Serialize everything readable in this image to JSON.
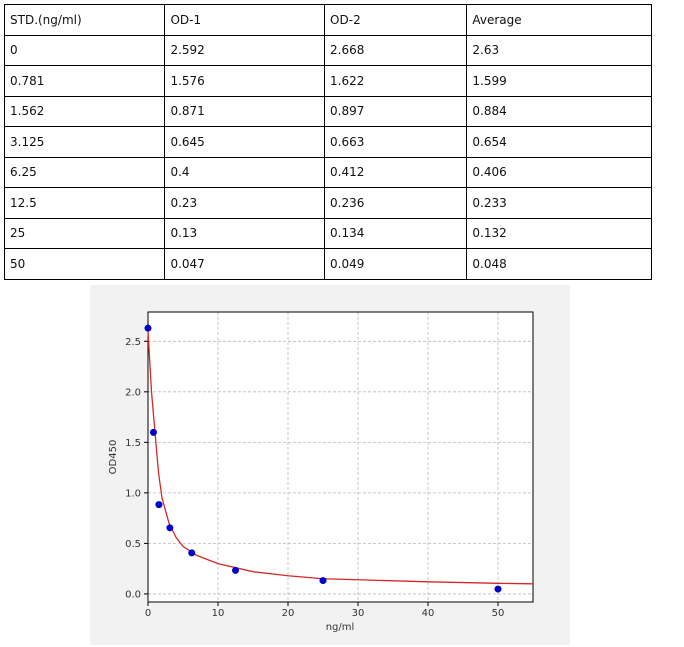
{
  "table": {
    "header": [
      "STD.(ng/ml)",
      "OD-1",
      "OD-2",
      "Average"
    ],
    "rows": [
      [
        "0",
        "2.592",
        "2.668",
        "2.63"
      ],
      [
        "0.781",
        "1.576",
        "1.622",
        "1.599"
      ],
      [
        "1.562",
        "0.871",
        "0.897",
        "0.884"
      ],
      [
        "3.125",
        "0.645",
        "0.663",
        "0.654"
      ],
      [
        "6.25",
        "0.4",
        "0.412",
        "0.406"
      ],
      [
        "12.5",
        "0.23",
        "0.236",
        "0.233"
      ],
      [
        "25",
        "0.13",
        "0.134",
        "0.132"
      ],
      [
        "50",
        "0.047",
        "0.049",
        "0.048"
      ]
    ]
  },
  "chart_data": {
    "type": "scatter",
    "xlabel": "ng/ml",
    "ylabel": "OD450",
    "xlim": [
      0,
      55
    ],
    "ylim": [
      -0.08,
      2.79
    ],
    "xticks": [
      0,
      10,
      20,
      30,
      40,
      50
    ],
    "yticks": [
      {
        "value": 0,
        "label": "0.0"
      },
      0.5,
      {
        "value": 1,
        "label": "1.0"
      },
      1.5,
      {
        "value": 2,
        "label": "2.0"
      },
      2.5
    ],
    "grid": true,
    "series": [
      {
        "type": "line",
        "color": "#d62728",
        "x": [
          0,
          0.5,
          1,
          1.5,
          2,
          3,
          4,
          5,
          7,
          10,
          15,
          20,
          25,
          30,
          40,
          50,
          55
        ],
        "values": [
          2.6,
          2.0,
          1.6,
          1.2,
          0.95,
          0.7,
          0.56,
          0.47,
          0.38,
          0.3,
          0.22,
          0.18,
          0.15,
          0.14,
          0.12,
          0.105,
          0.1
        ]
      },
      {
        "type": "scatter",
        "color": "#0000cc",
        "x": [
          0,
          0.781,
          1.562,
          3.125,
          6.25,
          12.5,
          25,
          50
        ],
        "values": [
          2.63,
          1.599,
          0.884,
          0.654,
          0.406,
          0.233,
          0.132,
          0.048
        ]
      }
    ]
  }
}
